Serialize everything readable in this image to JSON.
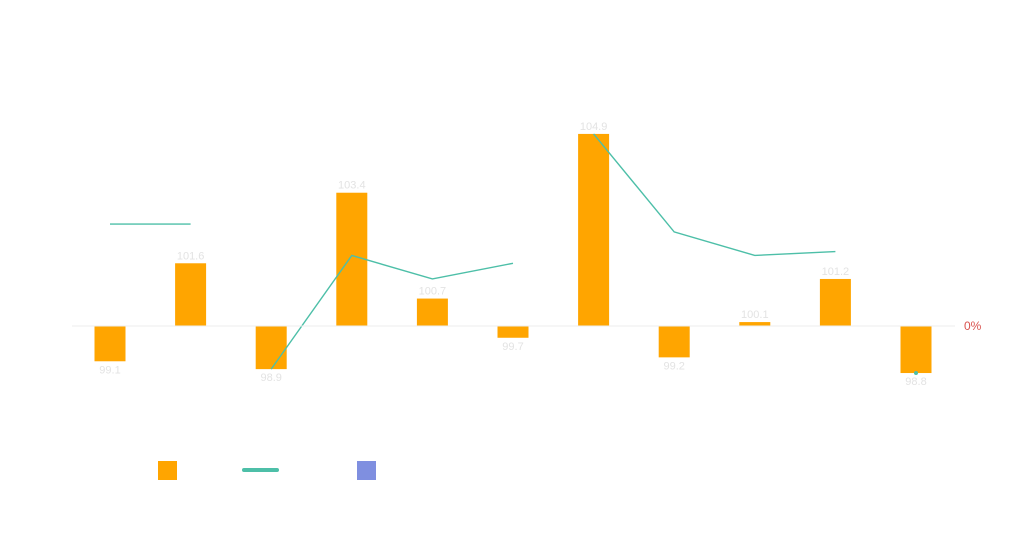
{
  "chart_data": {
    "type": "bar",
    "categories": [
      "",
      "",
      "",
      "",
      "",
      "",
      "",
      "",
      "",
      "",
      ""
    ],
    "baseline": 100,
    "bar_values": [
      99.1,
      101.6,
      98.9,
      103.4,
      100.7,
      99.7,
      104.9,
      99.2,
      100.1,
      101.2,
      98.8
    ],
    "value_labels": [
      "99.1",
      "101.6",
      "98.9",
      "103.4",
      "100.7",
      "99.7",
      "104.9",
      "99.2",
      "100.1",
      "101.2",
      "98.8"
    ],
    "line_segments": [
      [
        [
          0,
          102.6
        ],
        [
          1,
          102.6
        ]
      ],
      [
        [
          2,
          98.9
        ],
        [
          3,
          101.8
        ],
        [
          4,
          101.2
        ],
        [
          5,
          101.6
        ]
      ],
      [
        [
          6,
          104.9
        ],
        [
          7,
          102.4
        ],
        [
          8,
          101.8
        ],
        [
          9,
          101.9
        ]
      ],
      [
        [
          10,
          98.8
        ]
      ]
    ],
    "zero_axis_label": "0%",
    "legend": [
      {
        "kind": "bar",
        "color": "#FFA500"
      },
      {
        "kind": "line",
        "color": "#4DBFA8"
      },
      {
        "kind": "bar",
        "color": "#7F8FE0"
      }
    ],
    "colors": {
      "bar": "#FFA500",
      "line": "#4DBFA8",
      "zero_label": "#D9534F",
      "axis": "#eeeeee"
    }
  }
}
